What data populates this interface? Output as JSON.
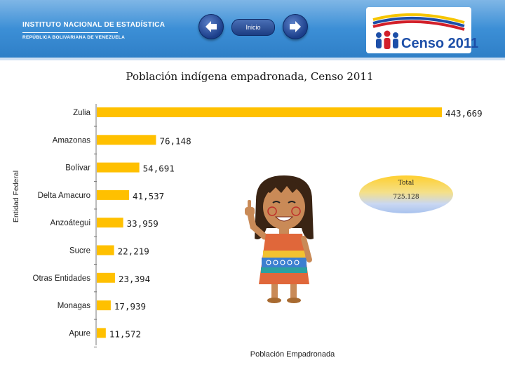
{
  "header": {
    "ine_line1": "INSTITUTO NACIONAL DE ESTADÍSTICA",
    "ine_line2": "REPÚBLICA BOLIVARIANA DE VENEZUELA",
    "inicio_label": "Inicio",
    "censo_label": "Censo 2011",
    "colors": {
      "header_blue": "#3c8fd6",
      "nav_blue": "#1b3e8a"
    }
  },
  "total": {
    "label": "Total",
    "value": "725.128"
  },
  "chart_data": {
    "type": "bar",
    "orientation": "horizontal",
    "title": "Población indígena empadronada, Censo 2011",
    "xlabel": "Población Empadronada",
    "ylabel": "Entidad Federal",
    "categories": [
      "Zulia",
      "Amazonas",
      "Bolívar",
      "Delta Amacuro",
      "Anzoátegui",
      "Sucre",
      "Otras Entidades",
      "Monagas",
      "Apure"
    ],
    "values": [
      443669,
      76148,
      54691,
      41537,
      33959,
      22219,
      23394,
      17939,
      11572
    ],
    "value_labels": [
      "443,669",
      "76,148",
      "54,691",
      "41,537",
      "33,959",
      "22,219",
      "23,394",
      "17,939",
      "11,572"
    ],
    "xlim": [
      0,
      443669
    ],
    "grid": false,
    "bar_color": "#ffc000"
  }
}
